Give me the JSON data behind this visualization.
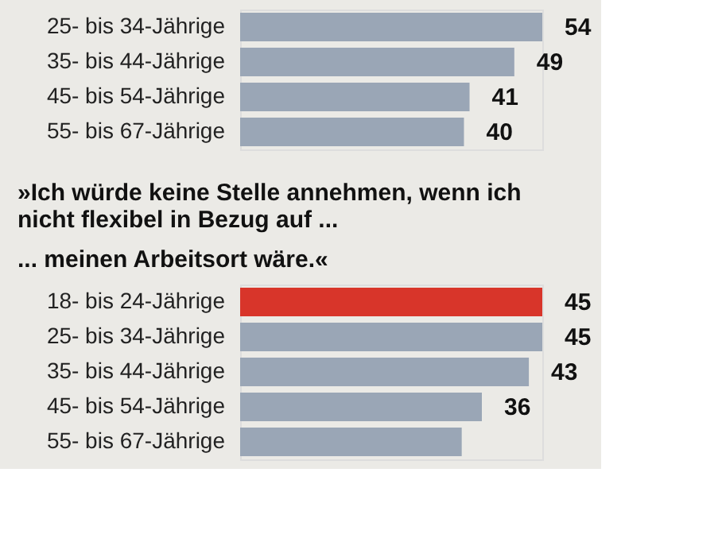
{
  "chart_data": [
    {
      "type": "bar",
      "orientation": "horizontal",
      "categories": [
        "25- bis 34-Jährige",
        "35- bis 44-Jährige",
        "45- bis 54-Jährige",
        "55- bis 67-Jährige"
      ],
      "values": [
        54,
        49,
        41,
        40
      ],
      "colors": [
        "#9aa6b6",
        "#9aa6b6",
        "#9aa6b6",
        "#9aa6b6"
      ],
      "data_labels": true
    },
    {
      "type": "bar",
      "orientation": "horizontal",
      "title": "»Ich würde keine Stelle annehmen, wenn ich nicht flexibel in Bezug auf ...",
      "subtitle": "... meinen Arbeitsort wäre.«",
      "categories": [
        "18- bis 24-Jährige",
        "25- bis 34-Jährige",
        "35- bis 44-Jährige",
        "45- bis 54-Jährige",
        "55- bis 67-Jährige"
      ],
      "values": [
        45,
        45,
        43,
        36,
        33
      ],
      "colors": [
        "#d8352a",
        "#9aa6b6",
        "#9aa6b6",
        "#9aa6b6",
        "#9aa6b6"
      ],
      "value_labels": [
        "45",
        "45",
        "43",
        "36",
        null
      ]
    }
  ]
}
